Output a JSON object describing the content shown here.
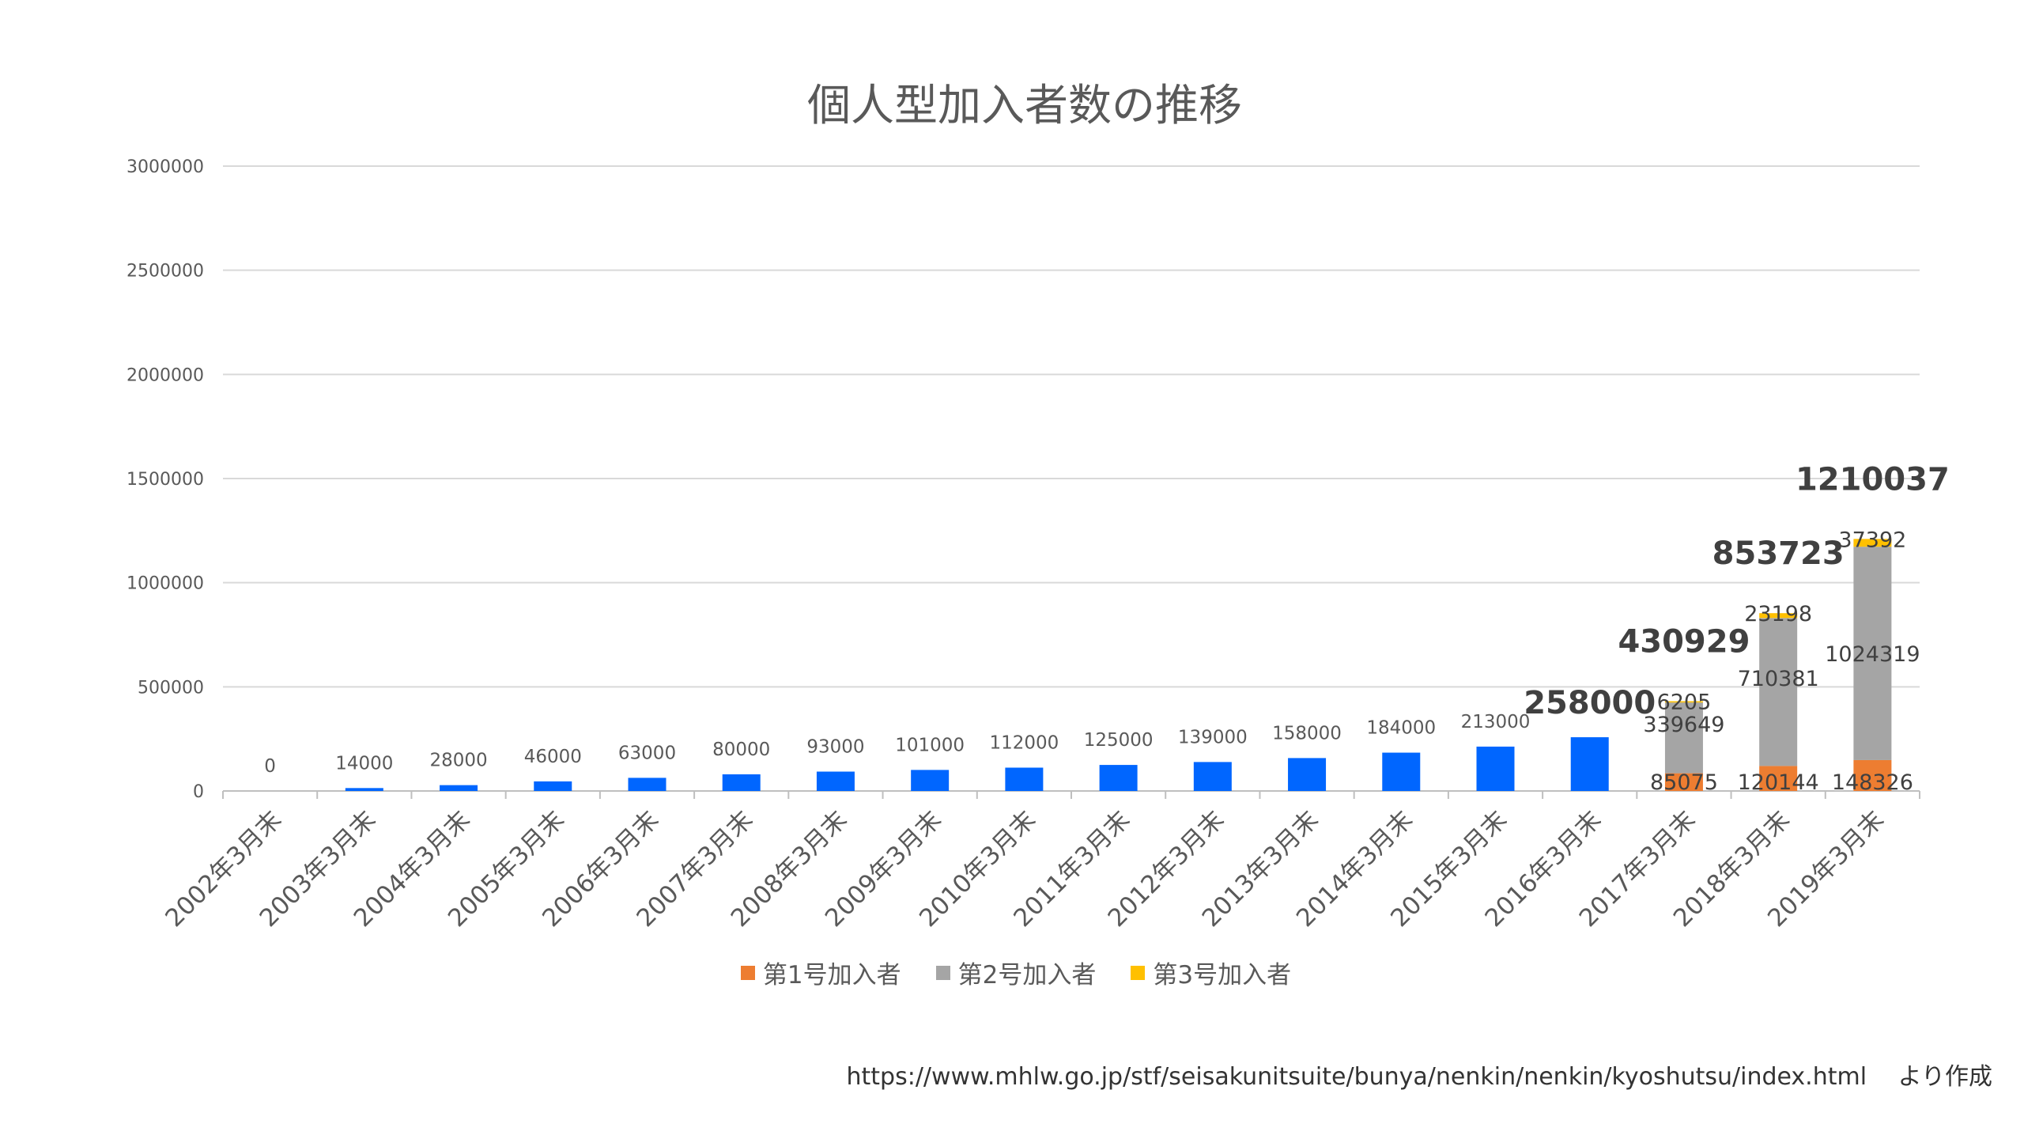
{
  "chart_data": {
    "type": "bar",
    "title": "個人型加入者数の推移",
    "categories": [
      "2002年3月末",
      "2003年3月末",
      "2004年3月末",
      "2005年3月末",
      "2006年3月末",
      "2007年3月末",
      "2008年3月末",
      "2009年3月末",
      "2010年3月末",
      "2011年3月末",
      "2012年3月末",
      "2013年3月末",
      "2014年3月末",
      "2015年3月末",
      "2016年3月末",
      "2017年3月末",
      "2018年3月末",
      "2019年3月末"
    ],
    "total_values": [
      0,
      14000,
      28000,
      46000,
      63000,
      80000,
      93000,
      101000,
      112000,
      125000,
      139000,
      158000,
      184000,
      213000,
      258000,
      null,
      null,
      null
    ],
    "series": [
      {
        "name": "第1号加入者",
        "color": "#ED7D31",
        "values": [
          null,
          null,
          null,
          null,
          null,
          null,
          null,
          null,
          null,
          null,
          null,
          null,
          null,
          null,
          null,
          85075,
          120144,
          148326
        ]
      },
      {
        "name": "第2号加入者",
        "color": "#A5A5A5",
        "values": [
          null,
          null,
          null,
          null,
          null,
          null,
          null,
          null,
          null,
          null,
          null,
          null,
          null,
          null,
          null,
          339649,
          710381,
          1024319
        ]
      },
      {
        "name": "第3号加入者",
        "color": "#FFC000",
        "values": [
          null,
          null,
          null,
          null,
          null,
          null,
          null,
          null,
          null,
          null,
          null,
          null,
          null,
          null,
          null,
          6205,
          23198,
          37392
        ]
      }
    ],
    "stack_totals": [
      null,
      null,
      null,
      null,
      null,
      null,
      null,
      null,
      null,
      null,
      null,
      null,
      null,
      null,
      null,
      430929,
      853723,
      1210037
    ],
    "highlight_labels": [
      "258000",
      "430929",
      "853723",
      "1210037"
    ],
    "total_bar_color": "#0066FF",
    "ylim": [
      0,
      3000000
    ],
    "yticks": [
      0,
      500000,
      1000000,
      1500000,
      2000000,
      2500000,
      3000000
    ],
    "xlabel": "",
    "ylabel": "",
    "grid": true,
    "legend_position": "bottom"
  },
  "source_note": "https://www.mhlw.go.jp/stf/seisakunitsuite/bunya/nenkin/nenkin/kyoshutsu/index.html　 より作成"
}
